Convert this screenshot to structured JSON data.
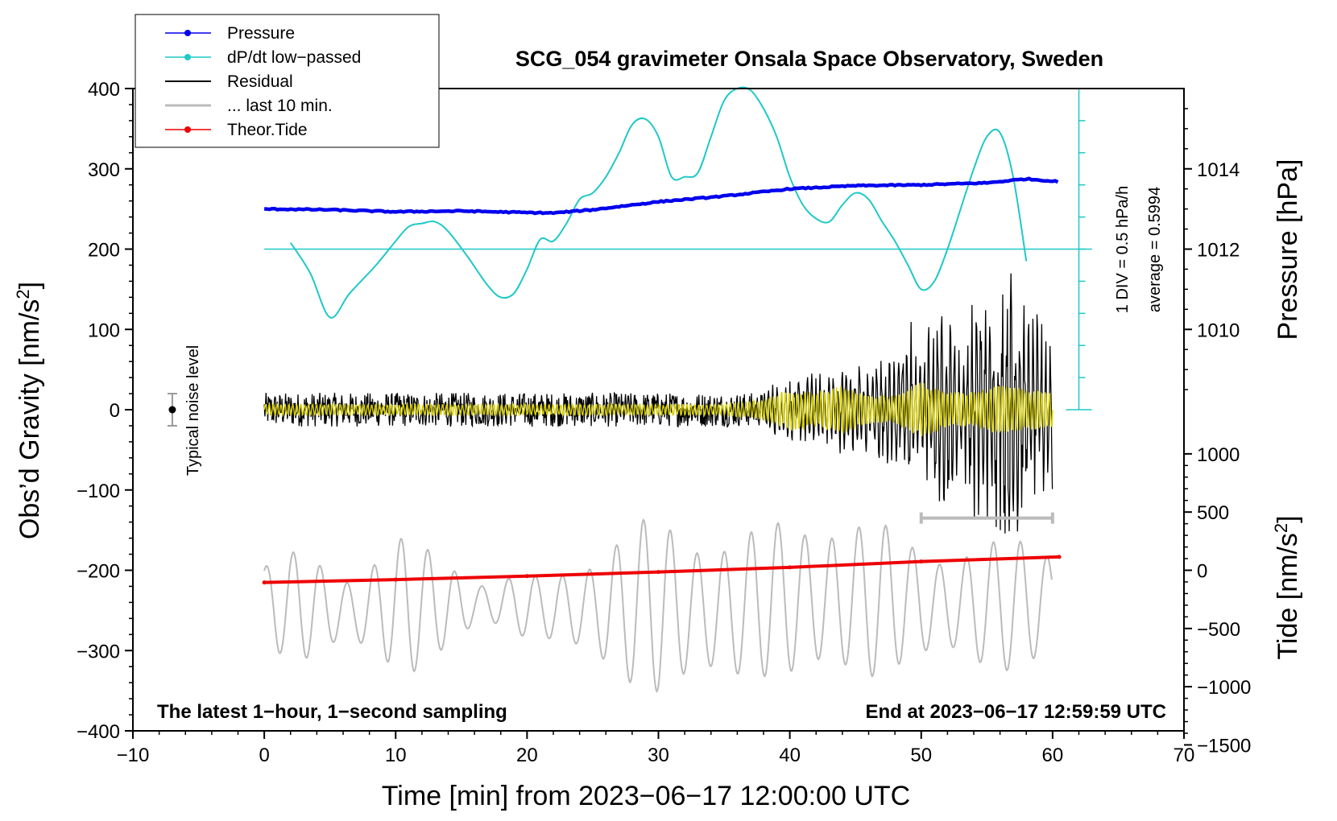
{
  "chart_data": {
    "type": "line",
    "title": "SCG_054 gravimeter Onsala Space Observatory, Sweden",
    "xlabel": "Time [min] from 2023−06−17 12:00:00 UTC",
    "ylabel_left_main": "Obs’d Gravity [nm/s",
    "ylabel_left_sup": "2",
    "ylabel_left_end": "]",
    "ylabel_right_pressure": "Pressure [hPa]",
    "ylabel_right_tide_main": "Tide [nm/s",
    "ylabel_right_tide_sup": "2",
    "ylabel_right_tide_end": "]",
    "xlim": [
      -10,
      70
    ],
    "ylim": [
      -400,
      400
    ],
    "pressure_lim": [
      1008,
      1016
    ],
    "tide_lim": [
      -1500,
      1500
    ],
    "x_ticks": [
      -10,
      0,
      10,
      20,
      30,
      40,
      50,
      60,
      70
    ],
    "x_tick_labels": [
      "−10",
      "0",
      "10",
      "20",
      "30",
      "40",
      "50",
      "60",
      "70"
    ],
    "y_ticks": [
      -400,
      -300,
      -200,
      -100,
      0,
      100,
      200,
      300,
      400
    ],
    "y_tick_labels": [
      "−400",
      "−300",
      "−200",
      "−100",
      "0",
      "100",
      "200",
      "300",
      "400"
    ],
    "pressure_ticks": [
      1010,
      1012,
      1014
    ],
    "pressure_tick_labels": [
      "1010",
      "1012",
      "1014"
    ],
    "tide_ticks": [
      -1500,
      -1000,
      -500,
      0,
      500,
      1000
    ],
    "tide_tick_labels": [
      "−1500",
      "−1000",
      "−500",
      "0",
      "500",
      "1000"
    ],
    "legend": {
      "position": "top-left",
      "entries": [
        "Pressure",
        "dP/dt low−passed",
        "Residual",
        "... last 10 min.",
        "Theor.Tide"
      ],
      "colors": [
        "#0000ee",
        "#1fc8c8",
        "#000000",
        "#bbbbbb",
        "#ee0000"
      ]
    },
    "annotations": {
      "noise_label": "Typical noise level",
      "noise_center": 0,
      "noise_halfwidth": 20,
      "div_label": "1 DIV = 0.5 hPa/h",
      "avg_label": "average = 0.5994",
      "bottom_left": "The latest 1−hour, 1−second sampling",
      "bottom_right": "End at 2023−06−17 12:59:59 UTC",
      "last10_bracket": [
        50,
        60
      ],
      "last10_level": -135
    },
    "series": [
      {
        "name": "Pressure",
        "color": "#0000ee",
        "axis": "pressure",
        "x": [
          0,
          5,
          10,
          15,
          20,
          22,
          25,
          30,
          35,
          40,
          45,
          50,
          55,
          58,
          60.5
        ],
        "values": [
          1013.0,
          1012.98,
          1012.93,
          1012.95,
          1012.91,
          1012.9,
          1012.98,
          1013.18,
          1013.32,
          1013.5,
          1013.58,
          1013.6,
          1013.65,
          1013.75,
          1013.68
        ]
      },
      {
        "name": "dP/dt low−passed",
        "color": "#1fc8c8",
        "axis": "gravity",
        "x": [
          2,
          3.5,
          5,
          6.5,
          8.5,
          10,
          11,
          12,
          13,
          14,
          15.5,
          17,
          18,
          19,
          20,
          21,
          22,
          23,
          24,
          25,
          26,
          27,
          28,
          29,
          30,
          31,
          32,
          33,
          34,
          35,
          36,
          37,
          38,
          39,
          40,
          41,
          42,
          43,
          44,
          45,
          46,
          47,
          48,
          49,
          50,
          51,
          52,
          53,
          54,
          55,
          56,
          57,
          58
        ],
        "values": [
          208,
          170,
          115,
          145,
          180,
          210,
          228,
          232,
          234,
          222,
          190,
          155,
          140,
          145,
          175,
          212,
          210,
          232,
          262,
          270,
          290,
          320,
          355,
          362,
          340,
          290,
          290,
          295,
          340,
          385,
          400,
          398,
          375,
          340,
          290,
          255,
          238,
          234,
          255,
          270,
          262,
          235,
          210,
          180,
          150,
          160,
          200,
          250,
          300,
          340,
          345,
          290,
          185
        ]
      },
      {
        "name": "Residual",
        "color": "#000000",
        "axis": "gravity",
        "x": [
          0,
          30,
          38,
          42,
          45,
          48,
          49,
          50,
          51,
          52,
          53,
          54,
          55,
          56,
          57,
          58,
          59,
          60
        ],
        "values": [
          25,
          25,
          25,
          40,
          55,
          60,
          110,
          95,
          90,
          110,
          60,
          120,
          140,
          150,
          160,
          100,
          100,
          90
        ]
      },
      {
        "name": "Residual low−passed",
        "color": "#d8d000",
        "axis": "gravity",
        "x": [
          0,
          35,
          38,
          40,
          42,
          44,
          46,
          48,
          50,
          52,
          54,
          56,
          58,
          60
        ],
        "values": [
          8,
          8,
          15,
          30,
          25,
          35,
          20,
          20,
          40,
          25,
          25,
          35,
          30,
          25
        ]
      },
      {
        "name": "... last 10 min.",
        "color": "#bbbbbb",
        "axis": "tide",
        "x": [
          0,
          1,
          2,
          3,
          4,
          5,
          6,
          7,
          8,
          9,
          10,
          11,
          12,
          13,
          14,
          15,
          16,
          17,
          18,
          19,
          20,
          21,
          22,
          23,
          24,
          25,
          26,
          27,
          28,
          29,
          30,
          31,
          32,
          33,
          34,
          35,
          36,
          37,
          38,
          39,
          40,
          41,
          42,
          43,
          44,
          45,
          46,
          47,
          48,
          49,
          50,
          51,
          52,
          53,
          54,
          55,
          56,
          57,
          58,
          59,
          60
        ],
        "values": [
          650,
          850,
          900,
          950,
          850,
          750,
          680,
          700,
          900,
          1050,
          1150,
          1200,
          1050,
          950,
          850,
          700,
          450,
          400,
          450,
          500,
          550,
          520,
          600,
          720,
          860,
          1000,
          1200,
          1300,
          1380,
          1450,
          1520,
          1460,
          1400,
          1380,
          1350,
          1340,
          1300,
          1300,
          1320,
          1350,
          1400,
          1420,
          1450,
          1480,
          1440,
          1400,
          1380,
          1300,
          1200,
          1100,
          1050,
          1000,
          1000,
          1000,
          1050,
          1100,
          1100,
          1150,
          1200,
          1150,
          900
        ],
        "centers": [
          -250,
          -300,
          -300,
          -300,
          -320,
          -330,
          -350,
          -350,
          -350,
          -300,
          -300,
          -300,
          -300,
          -300,
          -300,
          -300,
          -300,
          -280,
          -280,
          -300,
          -300,
          -320,
          -320,
          -330,
          -330,
          -330,
          -330,
          -320,
          -320,
          -280,
          -300,
          -320,
          -330,
          -350,
          -350,
          -350,
          -330,
          -300,
          -250,
          -250,
          -250,
          -250,
          -250,
          -250,
          -250,
          -250,
          -250,
          -250,
          -250,
          -250,
          -300,
          -300,
          -300,
          -300,
          -300,
          -300,
          -300,
          -300,
          -300,
          -250,
          -250
        ]
      },
      {
        "name": "Theor.Tide",
        "color": "#ee0000",
        "axis": "tide",
        "x": [
          0,
          10,
          20,
          30,
          40,
          50,
          60.5
        ],
        "values": [
          -105,
          -80,
          -50,
          -15,
          25,
          75,
          115
        ]
      }
    ]
  }
}
